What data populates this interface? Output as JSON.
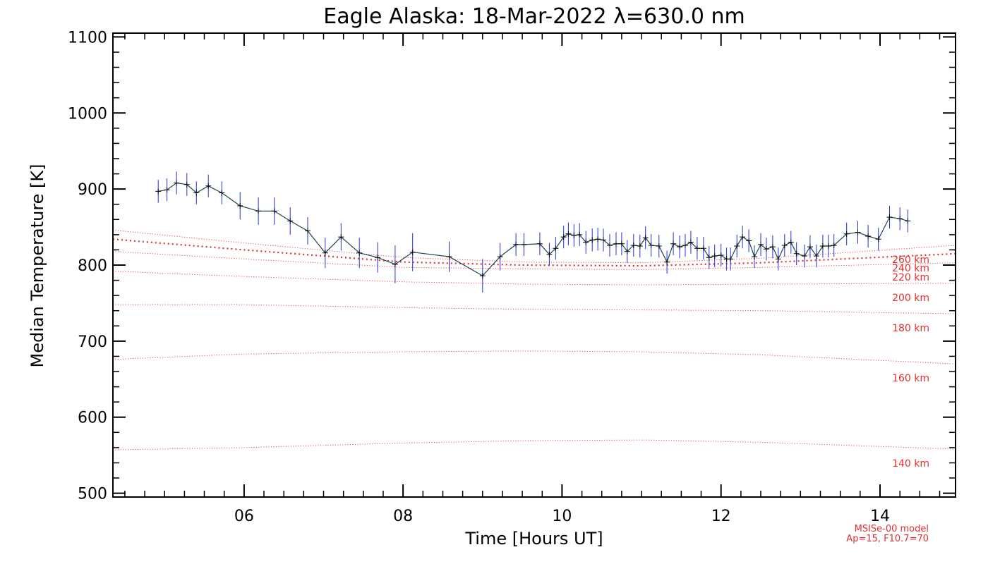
{
  "chart_data": {
    "type": "line",
    "title": "Eagle Alaska: 18-Mar-2022 λ=630.0 nm",
    "xlabel": "Time [Hours UT]",
    "ylabel": "Median Temperature [K]",
    "xlim": [
      4.35,
      14.95
    ],
    "ylim": [
      495,
      1105
    ],
    "x_ticks": [
      6,
      8,
      10,
      12,
      14
    ],
    "x_tick_labels": [
      "06",
      "08",
      "10",
      "12",
      "14"
    ],
    "y_ticks": [
      500,
      600,
      700,
      800,
      900,
      1000,
      1100
    ],
    "y_tick_labels": [
      "500",
      "600",
      "700",
      "800",
      "900",
      "1000",
      "1100"
    ],
    "colors": {
      "measurement_line": "#1e4650",
      "error_bar": "#2030e0",
      "model": "#e03030"
    },
    "series": [
      {
        "x": [
          4.92,
          5.03,
          5.15,
          5.28,
          5.4,
          5.55,
          5.72,
          5.95,
          6.18,
          6.38,
          6.58,
          6.8,
          7.02,
          7.22,
          7.45,
          7.68,
          7.9,
          8.12,
          8.58,
          9.0,
          9.22,
          9.42,
          9.52,
          9.72,
          9.84,
          9.92,
          10.02,
          10.08,
          10.15,
          10.22,
          10.3,
          10.38,
          10.45,
          10.52,
          10.6,
          10.68,
          10.75,
          10.82,
          10.9,
          10.98,
          11.05,
          11.12,
          11.22,
          11.32,
          11.4,
          11.48,
          11.55,
          11.62,
          11.7,
          11.78,
          11.85,
          11.92,
          12.0,
          12.07,
          12.12,
          12.2,
          12.27,
          12.35,
          12.42,
          12.5,
          12.57,
          12.65,
          12.72,
          12.8,
          12.88,
          12.95,
          13.05,
          13.12,
          13.2,
          13.28,
          13.35,
          13.42,
          13.58,
          13.72,
          13.85,
          13.98,
          14.12,
          14.25,
          14.35
        ],
        "y": [
          897,
          899,
          908,
          906,
          895,
          904,
          895,
          878,
          871,
          871,
          858,
          845,
          816,
          837,
          816,
          810,
          801,
          817,
          811,
          786,
          811,
          827,
          827,
          828,
          814,
          822,
          837,
          841,
          839,
          840,
          830,
          833,
          834,
          833,
          826,
          828,
          828,
          818,
          826,
          825,
          836,
          826,
          825,
          804,
          828,
          824,
          826,
          830,
          822,
          822,
          810,
          812,
          813,
          808,
          808,
          825,
          837,
          832,
          811,
          827,
          821,
          824,
          808,
          826,
          830,
          815,
          812,
          824,
          812,
          825,
          825,
          826,
          841,
          843,
          838,
          834,
          863,
          861,
          858
        ],
        "err": [
          15,
          15,
          15,
          15,
          15,
          15,
          15,
          18,
          18,
          18,
          18,
          18,
          20,
          18,
          20,
          20,
          25,
          25,
          20,
          22,
          18,
          15,
          15,
          15,
          15,
          15,
          15,
          15,
          15,
          15,
          15,
          15,
          15,
          15,
          15,
          15,
          15,
          15,
          15,
          15,
          15,
          15,
          15,
          15,
          15,
          15,
          15,
          15,
          15,
          15,
          15,
          15,
          15,
          15,
          15,
          15,
          15,
          15,
          15,
          15,
          15,
          15,
          15,
          15,
          15,
          15,
          15,
          15,
          15,
          15,
          15,
          15,
          15,
          15,
          15,
          15,
          15,
          15,
          15
        ]
      }
    ],
    "model_curves": [
      {
        "label": "140 km",
        "x": [
          4.35,
          6,
          8,
          9.5,
          11,
          12.5,
          14.95
        ],
        "y": [
          557,
          560,
          566,
          569,
          570,
          567,
          558
        ]
      },
      {
        "label": "160 km",
        "x": [
          4.35,
          6,
          8,
          9.5,
          11,
          12.5,
          14.95
        ],
        "y": [
          676,
          683,
          686,
          687,
          686,
          682,
          670
        ]
      },
      {
        "label": "180 km",
        "x": [
          4.35,
          6,
          8,
          9.5,
          11,
          12.5,
          14.95
        ],
        "y": [
          748,
          748,
          744,
          742,
          741,
          740,
          736
        ]
      },
      {
        "label": "200 km",
        "x": [
          4.35,
          6,
          8,
          9.5,
          11,
          12.5,
          14.95
        ],
        "y": [
          792,
          785,
          778,
          775,
          774,
          775,
          776
        ]
      },
      {
        "label": "220 km",
        "x": [
          4.35,
          6,
          8,
          9.5,
          11,
          12.5,
          14.95
        ],
        "y": [
          818,
          808,
          797,
          795,
          794,
          797,
          803
        ]
      },
      {
        "label": "240 km",
        "x": [
          4.35,
          6,
          8,
          9.5,
          11,
          12.5,
          14.95
        ],
        "y": [
          834,
          820,
          804,
          800,
          799,
          803,
          815
        ]
      },
      {
        "label": "260 km",
        "x": [
          4.35,
          6,
          8,
          9.5,
          11,
          12.5,
          14.95
        ],
        "y": [
          846,
          829,
          810,
          804,
          803,
          809,
          826
        ]
      }
    ],
    "model_note": [
      "MSISe-00 model",
      "Ap=15, F10.7=70"
    ]
  }
}
